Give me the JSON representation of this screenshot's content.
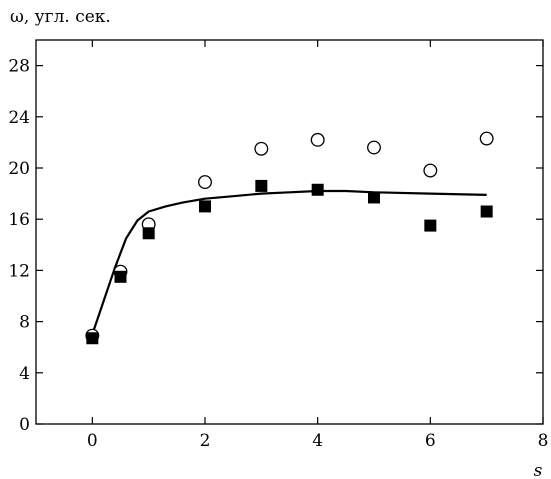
{
  "chart_data": {
    "type": "scatter",
    "ylabel_symbol": "ω",
    "ylabel_unit": ", угл. сек.",
    "xlabel": "s",
    "xlim": [
      -1,
      8
    ],
    "ylim": [
      0,
      30
    ],
    "xticks": [
      0,
      2,
      4,
      6,
      8
    ],
    "yticks": [
      0,
      4,
      8,
      12,
      16,
      20,
      24,
      28
    ],
    "grid": false,
    "series": [
      {
        "marker": "open-circle",
        "color": "#000000",
        "points": [
          {
            "x": 0,
            "y": 6.9
          },
          {
            "x": 0.5,
            "y": 11.9
          },
          {
            "x": 1,
            "y": 15.6
          },
          {
            "x": 2,
            "y": 18.9
          },
          {
            "x": 3,
            "y": 21.5
          },
          {
            "x": 4,
            "y": 22.2
          },
          {
            "x": 5,
            "y": 21.6
          },
          {
            "x": 6,
            "y": 19.8
          },
          {
            "x": 7,
            "y": 22.3
          }
        ]
      },
      {
        "marker": "filled-square",
        "color": "#000000",
        "points": [
          {
            "x": 0,
            "y": 6.7
          },
          {
            "x": 0.5,
            "y": 11.5
          },
          {
            "x": 1,
            "y": 14.9
          },
          {
            "x": 2,
            "y": 17.0
          },
          {
            "x": 3,
            "y": 18.6
          },
          {
            "x": 4,
            "y": 18.3
          },
          {
            "x": 5,
            "y": 17.7
          },
          {
            "x": 6,
            "y": 15.5
          },
          {
            "x": 7,
            "y": 16.6
          }
        ]
      },
      {
        "type": "line",
        "color": "#000000",
        "points": [
          {
            "x": 0,
            "y": 7.0
          },
          {
            "x": 0.2,
            "y": 9.6
          },
          {
            "x": 0.4,
            "y": 12.2
          },
          {
            "x": 0.6,
            "y": 14.5
          },
          {
            "x": 0.8,
            "y": 15.9
          },
          {
            "x": 1.0,
            "y": 16.6
          },
          {
            "x": 1.3,
            "y": 17.0
          },
          {
            "x": 1.6,
            "y": 17.3
          },
          {
            "x": 2.0,
            "y": 17.6
          },
          {
            "x": 2.5,
            "y": 17.8
          },
          {
            "x": 3.0,
            "y": 18.0
          },
          {
            "x": 3.5,
            "y": 18.1
          },
          {
            "x": 4.0,
            "y": 18.2
          },
          {
            "x": 4.5,
            "y": 18.2
          },
          {
            "x": 5.0,
            "y": 18.1
          },
          {
            "x": 6.0,
            "y": 18.0
          },
          {
            "x": 7.0,
            "y": 17.9
          }
        ]
      }
    ]
  }
}
